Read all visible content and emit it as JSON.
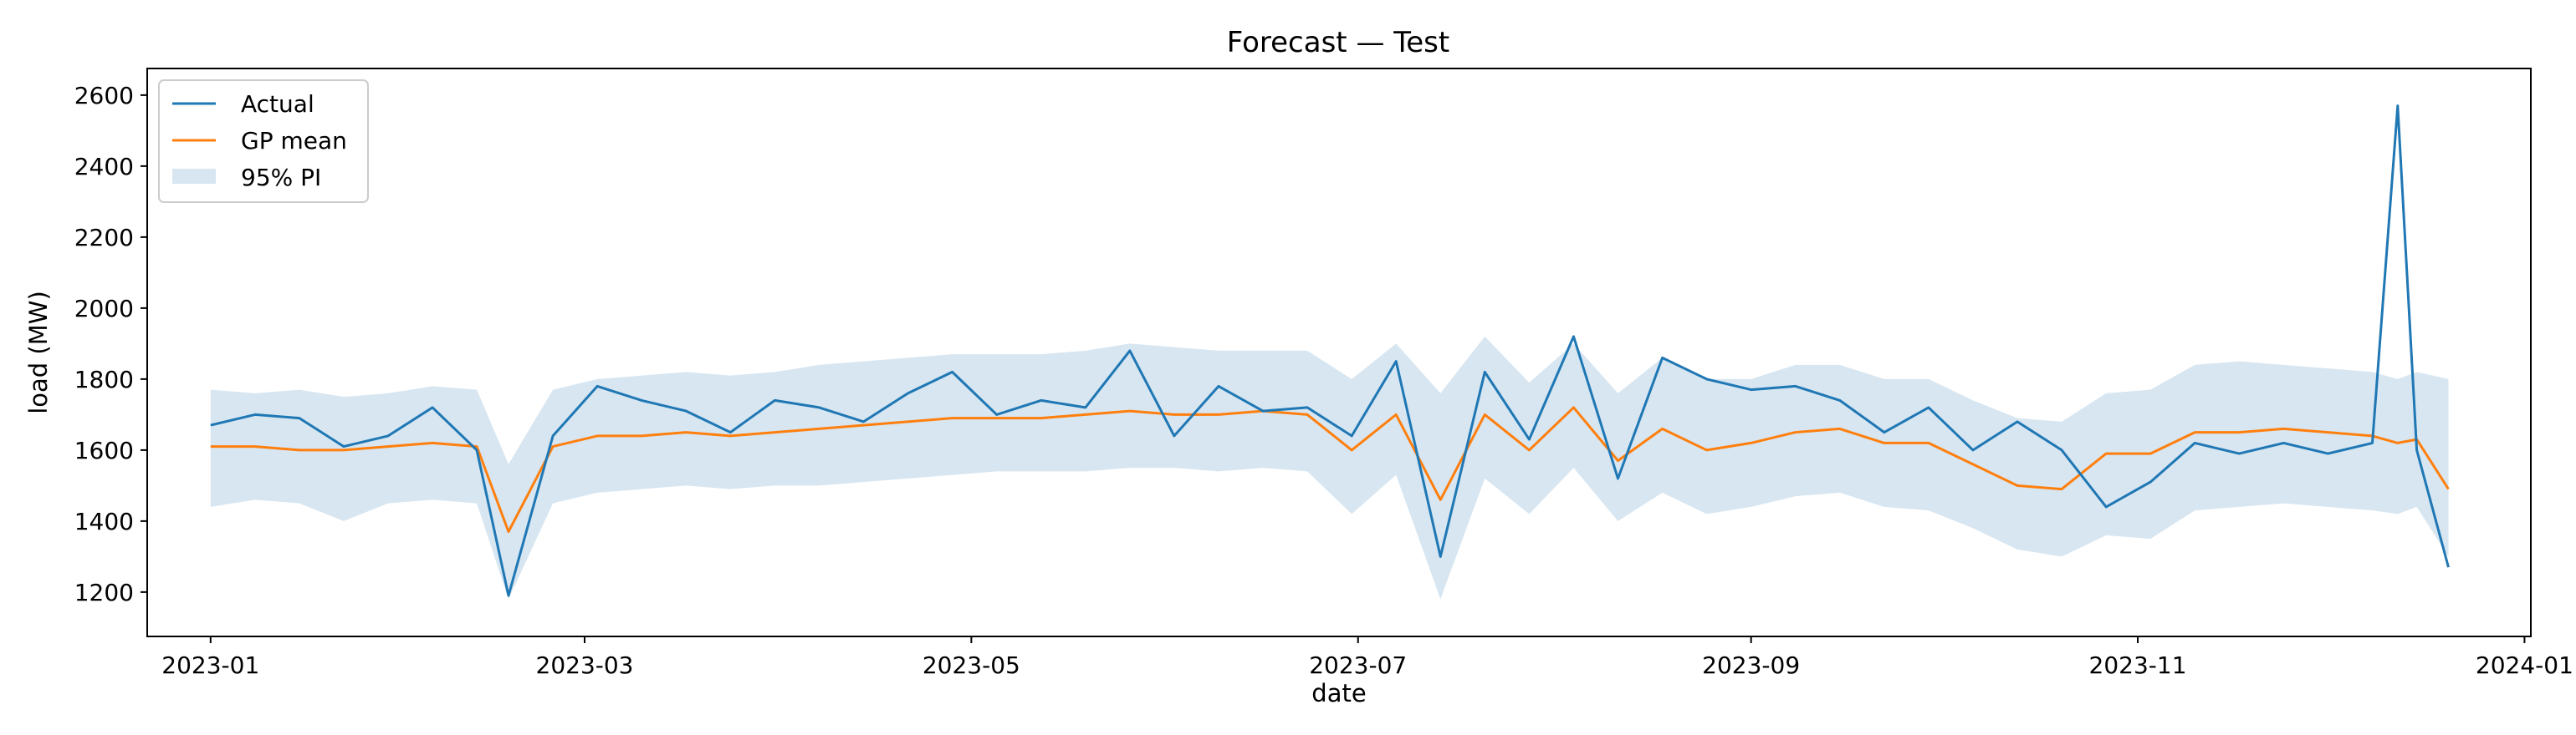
{
  "chart_data": {
    "type": "line",
    "title": "Forecast — Test",
    "xlabel": "date",
    "ylabel": "load (MW)",
    "xlim": [
      "2022-12-22",
      "2024-01-02"
    ],
    "ylim": [
      1075,
      2675
    ],
    "x_ticks": [
      "2023-01",
      "2023-03",
      "2023-05",
      "2023-07",
      "2023-09",
      "2023-11",
      "2024-01"
    ],
    "y_ticks": [
      1200,
      1400,
      1600,
      1800,
      2000,
      2200,
      2400,
      2600
    ],
    "legend_position": "upper-left",
    "grid": false,
    "colors": {
      "actual": "#1f77b4",
      "gp_mean": "#ff7f0e",
      "pi_band": "#1f77b4"
    },
    "legend": [
      {
        "label": "Actual",
        "kind": "line",
        "color": "#1f77b4"
      },
      {
        "label": "GP mean",
        "kind": "line",
        "color": "#ff7f0e"
      },
      {
        "label": "95% PI",
        "kind": "band",
        "color": "#1f77b4"
      }
    ],
    "series": [
      {
        "name": "Actual",
        "x": [
          "2023-01-01",
          "2023-01-08",
          "2023-01-15",
          "2023-01-22",
          "2023-01-29",
          "2023-02-05",
          "2023-02-12",
          "2023-02-17",
          "2023-02-24",
          "2023-03-03",
          "2023-03-10",
          "2023-03-17",
          "2023-03-24",
          "2023-03-31",
          "2023-04-07",
          "2023-04-14",
          "2023-04-21",
          "2023-04-28",
          "2023-05-05",
          "2023-05-12",
          "2023-05-19",
          "2023-05-26",
          "2023-06-02",
          "2023-06-09",
          "2023-06-16",
          "2023-06-23",
          "2023-06-30",
          "2023-07-07",
          "2023-07-14",
          "2023-07-21",
          "2023-07-28",
          "2023-08-04",
          "2023-08-11",
          "2023-08-18",
          "2023-08-25",
          "2023-09-01",
          "2023-09-08",
          "2023-09-15",
          "2023-09-22",
          "2023-09-29",
          "2023-10-06",
          "2023-10-13",
          "2023-10-20",
          "2023-10-27",
          "2023-11-03",
          "2023-11-10",
          "2023-11-17",
          "2023-11-24",
          "2023-12-01",
          "2023-12-08",
          "2023-12-12",
          "2023-12-15",
          "2023-12-20"
        ],
        "y": [
          1670,
          1700,
          1690,
          1610,
          1640,
          1720,
          1600,
          1190,
          1640,
          1780,
          1740,
          1710,
          1650,
          1740,
          1720,
          1680,
          1760,
          1820,
          1700,
          1740,
          1720,
          1880,
          1640,
          1780,
          1710,
          1720,
          1640,
          1850,
          1300,
          1820,
          1630,
          1920,
          1520,
          1860,
          1800,
          1770,
          1780,
          1740,
          1650,
          1720,
          1600,
          1680,
          1600,
          1440,
          1510,
          1620,
          1590,
          1620,
          1590,
          1620,
          2570,
          1600,
          1270
        ]
      },
      {
        "name": "GP mean",
        "x": [
          "2023-01-01",
          "2023-01-08",
          "2023-01-15",
          "2023-01-22",
          "2023-01-29",
          "2023-02-05",
          "2023-02-12",
          "2023-02-17",
          "2023-02-24",
          "2023-03-03",
          "2023-03-10",
          "2023-03-17",
          "2023-03-24",
          "2023-03-31",
          "2023-04-07",
          "2023-04-14",
          "2023-04-21",
          "2023-04-28",
          "2023-05-05",
          "2023-05-12",
          "2023-05-19",
          "2023-05-26",
          "2023-06-02",
          "2023-06-09",
          "2023-06-16",
          "2023-06-23",
          "2023-06-30",
          "2023-07-07",
          "2023-07-14",
          "2023-07-21",
          "2023-07-28",
          "2023-08-04",
          "2023-08-11",
          "2023-08-18",
          "2023-08-25",
          "2023-09-01",
          "2023-09-08",
          "2023-09-15",
          "2023-09-22",
          "2023-09-29",
          "2023-10-06",
          "2023-10-13",
          "2023-10-20",
          "2023-10-27",
          "2023-11-03",
          "2023-11-10",
          "2023-11-17",
          "2023-11-24",
          "2023-12-01",
          "2023-12-08",
          "2023-12-12",
          "2023-12-15",
          "2023-12-20"
        ],
        "y": [
          1610,
          1610,
          1600,
          1600,
          1610,
          1620,
          1610,
          1370,
          1610,
          1640,
          1640,
          1650,
          1640,
          1650,
          1660,
          1670,
          1680,
          1690,
          1690,
          1690,
          1700,
          1710,
          1700,
          1700,
          1710,
          1700,
          1600,
          1700,
          1460,
          1700,
          1600,
          1720,
          1570,
          1660,
          1600,
          1620,
          1650,
          1660,
          1620,
          1620,
          1560,
          1500,
          1490,
          1590,
          1590,
          1650,
          1650,
          1660,
          1650,
          1640,
          1620,
          1630,
          1490
        ]
      }
    ],
    "band": {
      "name": "95% PI",
      "x": [
        "2023-01-01",
        "2023-01-08",
        "2023-01-15",
        "2023-01-22",
        "2023-01-29",
        "2023-02-05",
        "2023-02-12",
        "2023-02-17",
        "2023-02-24",
        "2023-03-03",
        "2023-03-10",
        "2023-03-17",
        "2023-03-24",
        "2023-03-31",
        "2023-04-07",
        "2023-04-14",
        "2023-04-21",
        "2023-04-28",
        "2023-05-05",
        "2023-05-12",
        "2023-05-19",
        "2023-05-26",
        "2023-06-02",
        "2023-06-09",
        "2023-06-16",
        "2023-06-23",
        "2023-06-30",
        "2023-07-07",
        "2023-07-14",
        "2023-07-21",
        "2023-07-28",
        "2023-08-04",
        "2023-08-11",
        "2023-08-18",
        "2023-08-25",
        "2023-09-01",
        "2023-09-08",
        "2023-09-15",
        "2023-09-22",
        "2023-09-29",
        "2023-10-06",
        "2023-10-13",
        "2023-10-20",
        "2023-10-27",
        "2023-11-03",
        "2023-11-10",
        "2023-11-17",
        "2023-11-24",
        "2023-12-01",
        "2023-12-08",
        "2023-12-12",
        "2023-12-15",
        "2023-12-20"
      ],
      "lower": [
        1440,
        1460,
        1450,
        1400,
        1450,
        1460,
        1450,
        1180,
        1450,
        1480,
        1490,
        1500,
        1490,
        1500,
        1500,
        1510,
        1520,
        1530,
        1540,
        1540,
        1540,
        1550,
        1550,
        1540,
        1550,
        1540,
        1420,
        1530,
        1180,
        1520,
        1420,
        1550,
        1400,
        1480,
        1420,
        1440,
        1470,
        1480,
        1440,
        1430,
        1380,
        1320,
        1300,
        1360,
        1350,
        1430,
        1440,
        1450,
        1440,
        1430,
        1420,
        1440,
        1300
      ],
      "upper": [
        1770,
        1760,
        1770,
        1750,
        1760,
        1780,
        1770,
        1560,
        1770,
        1800,
        1810,
        1820,
        1810,
        1820,
        1840,
        1850,
        1860,
        1870,
        1870,
        1870,
        1880,
        1900,
        1890,
        1880,
        1880,
        1880,
        1800,
        1900,
        1760,
        1920,
        1790,
        1900,
        1760,
        1860,
        1800,
        1800,
        1840,
        1840,
        1800,
        1800,
        1740,
        1690,
        1680,
        1760,
        1770,
        1840,
        1850,
        1840,
        1830,
        1820,
        1800,
        1820,
        1800
      ]
    }
  }
}
